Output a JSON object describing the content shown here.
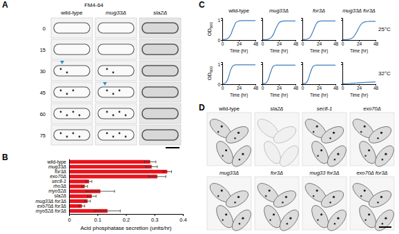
{
  "figure": {
    "panel_labels": [
      "A",
      "B",
      "C",
      "D"
    ],
    "panel_a": {
      "stain": "FM4-64",
      "columns": [
        "wild-type",
        "mug33Δ",
        "sla2Δ"
      ],
      "times": [
        0,
        15,
        30,
        45,
        60,
        75
      ]
    },
    "panel_d": {
      "labels": [
        "wild-type",
        "sla2Δ",
        "sec8-1",
        "exo70Δ",
        "mug33Δ",
        "for3Δ",
        "mug33 for3Δ",
        "exo70Δ for3Δ"
      ]
    }
  },
  "chart_data": [
    {
      "type": "bar",
      "orientation": "horizontal",
      "categories": [
        "wild-type",
        "mug33Δ",
        "for3Δ",
        "exo70Δ",
        "sec8-1",
        "rho3Δ",
        "myo52Δ",
        "sla2Δ",
        "mug33Δ for3Δ",
        "exo70Δ for3Δ",
        "myo52Δ for3Δ"
      ],
      "values": [
        0.285,
        0.29,
        0.345,
        0.31,
        0.07,
        0.055,
        0.11,
        0.08,
        0.065,
        0.045,
        0.135
      ],
      "errors": [
        0.02,
        0.02,
        0.015,
        0.03,
        0.01,
        0.01,
        0.05,
        0.015,
        0.01,
        0.01,
        0.045
      ],
      "color": "#e8141c",
      "xlim": [
        0,
        0.4
      ],
      "xticks": [
        0,
        0.1,
        0.2,
        0.3,
        0.4
      ],
      "xlabel": "Acid phosphatase secretion (units/hr)",
      "grid": false
    },
    {
      "type": "line",
      "title": "wild-type",
      "ylabel": "OD600",
      "xlabel": "Time (hr)",
      "color": "#3c7fc0",
      "x": [
        0,
        4,
        8,
        12,
        16,
        20,
        24,
        28,
        32,
        36,
        40,
        44,
        48
      ],
      "values": [
        0.02,
        0.03,
        0.08,
        0.25,
        0.6,
        0.88,
        0.95,
        0.97,
        0.97,
        0.97,
        0.97,
        0.97,
        0.97
      ],
      "xlim": [
        0,
        48
      ],
      "xticks": [
        0,
        24,
        48
      ],
      "ylim": [
        0,
        1.1
      ],
      "yticks": [
        0,
        1
      ]
    },
    {
      "type": "line",
      "title": "mug33Δ",
      "xlabel": "Time (hr)",
      "color": "#3c7fc0",
      "tick_labels": "x",
      "x": [
        0,
        4,
        8,
        12,
        16,
        20,
        24,
        28,
        32,
        36,
        40,
        44,
        48
      ],
      "values": [
        0.02,
        0.02,
        0.04,
        0.1,
        0.28,
        0.6,
        0.85,
        0.93,
        0.95,
        0.95,
        0.95,
        0.95,
        0.95
      ],
      "xlim": [
        0,
        48
      ],
      "xticks": [
        0,
        24,
        48
      ],
      "ylim": [
        0,
        1.1
      ],
      "yticks": [
        0,
        1
      ]
    },
    {
      "type": "line",
      "title": "for3Δ",
      "xlabel": "Time (hr)",
      "color": "#3c7fc0",
      "tick_labels": "x",
      "x": [
        0,
        4,
        8,
        12,
        16,
        20,
        24,
        28,
        32,
        36,
        40,
        44,
        48
      ],
      "values": [
        0.02,
        0.03,
        0.06,
        0.18,
        0.48,
        0.8,
        0.93,
        0.95,
        0.95,
        0.95,
        0.95,
        0.95,
        0.95
      ],
      "xlim": [
        0,
        48
      ],
      "xticks": [
        0,
        24,
        48
      ],
      "ylim": [
        0,
        1.1
      ],
      "yticks": [
        0,
        1
      ]
    },
    {
      "type": "line",
      "title": "mug33Δ for3Δ",
      "xlabel": "Time (hr)",
      "annotation": "25°C",
      "color": "#3c7fc0",
      "tick_labels": "x",
      "x": [
        0,
        4,
        8,
        12,
        16,
        20,
        24,
        28,
        32,
        36,
        40,
        44,
        48
      ],
      "values": [
        0.02,
        0.02,
        0.03,
        0.06,
        0.15,
        0.35,
        0.62,
        0.82,
        0.9,
        0.92,
        0.93,
        0.93,
        0.93
      ],
      "xlim": [
        0,
        48
      ],
      "xticks": [
        0,
        24,
        48
      ],
      "ylim": [
        0,
        1.1
      ],
      "yticks": [
        0,
        1
      ]
    },
    {
      "type": "line",
      "ylabel": "OD600",
      "xlabel": "Time (hr)",
      "color": "#3c7fc0",
      "x": [
        0,
        4,
        8,
        12,
        16,
        20,
        24,
        28,
        32,
        36,
        40,
        44,
        48
      ],
      "values": [
        0.02,
        0.05,
        0.25,
        0.7,
        0.93,
        0.97,
        0.97,
        0.97,
        0.97,
        0.97,
        0.97,
        0.97,
        0.97
      ],
      "xlim": [
        0,
        48
      ],
      "xticks": [
        0,
        24,
        48
      ],
      "ylim": [
        0,
        1.1
      ],
      "yticks": [
        0,
        1
      ]
    },
    {
      "type": "line",
      "xlabel": "Time (hr)",
      "color": "#3c7fc0",
      "tick_labels": "x",
      "x": [
        0,
        4,
        8,
        12,
        16,
        20,
        24,
        28,
        32,
        36,
        40,
        44,
        48
      ],
      "values": [
        0.02,
        0.04,
        0.18,
        0.6,
        0.9,
        0.95,
        0.95,
        0.95,
        0.95,
        0.95,
        0.95,
        0.95,
        0.95
      ],
      "xlim": [
        0,
        48
      ],
      "xticks": [
        0,
        24,
        48
      ],
      "ylim": [
        0,
        1.1
      ],
      "yticks": [
        0,
        1
      ]
    },
    {
      "type": "line",
      "xlabel": "Time (hr)",
      "color": "#3c7fc0",
      "tick_labels": "x",
      "x": [
        0,
        4,
        8,
        12,
        16,
        20,
        24,
        28,
        32,
        36,
        40,
        44,
        48
      ],
      "values": [
        0.02,
        0.04,
        0.2,
        0.62,
        0.9,
        0.95,
        0.95,
        0.95,
        0.95,
        0.95,
        0.95,
        0.95,
        0.95
      ],
      "xlim": [
        0,
        48
      ],
      "xticks": [
        0,
        24,
        48
      ],
      "ylim": [
        0,
        1.1
      ],
      "yticks": [
        0,
        1
      ]
    },
    {
      "type": "line",
      "xlabel": "Time (hr)",
      "annotation": "32°C",
      "color": "#3c7fc0",
      "tick_labels": "x",
      "x": [
        0,
        4,
        8,
        12,
        16,
        20,
        24,
        28,
        32,
        36,
        40,
        44,
        48
      ],
      "values": [
        0.02,
        0.02,
        0.03,
        0.04,
        0.05,
        0.06,
        0.07,
        0.08,
        0.09,
        0.1,
        0.1,
        0.11,
        0.11
      ],
      "xlim": [
        0,
        48
      ],
      "xticks": [
        0,
        24,
        48
      ],
      "ylim": [
        0,
        1.1
      ],
      "yticks": [
        0,
        1
      ]
    }
  ]
}
